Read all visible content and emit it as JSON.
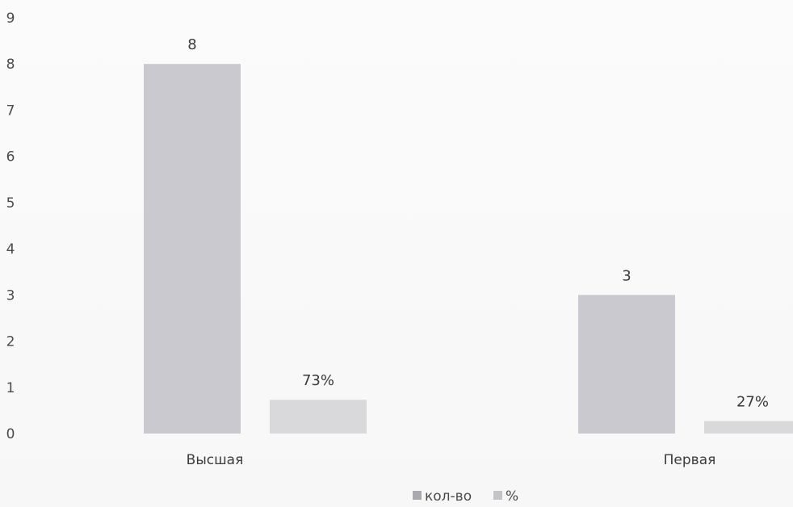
{
  "chart_data": {
    "type": "bar",
    "title": "",
    "xlabel": "",
    "ylabel": "",
    "ylim": [
      0,
      9
    ],
    "y_ticks": [
      "0",
      "1",
      "2",
      "3",
      "4",
      "5",
      "6",
      "7",
      "8",
      "9"
    ],
    "grid": false,
    "legend_position": "bottom",
    "categories": [
      "Высшая",
      "Первая"
    ],
    "series": [
      {
        "name": "кол-во",
        "values": [
          8,
          3
        ],
        "labels": [
          "8",
          "3"
        ],
        "color": "#c9c9cf"
      },
      {
        "name": "%",
        "values": [
          0.73,
          0.27
        ],
        "labels": [
          "73%",
          "27%"
        ],
        "color": "#d9d9dc"
      }
    ]
  }
}
